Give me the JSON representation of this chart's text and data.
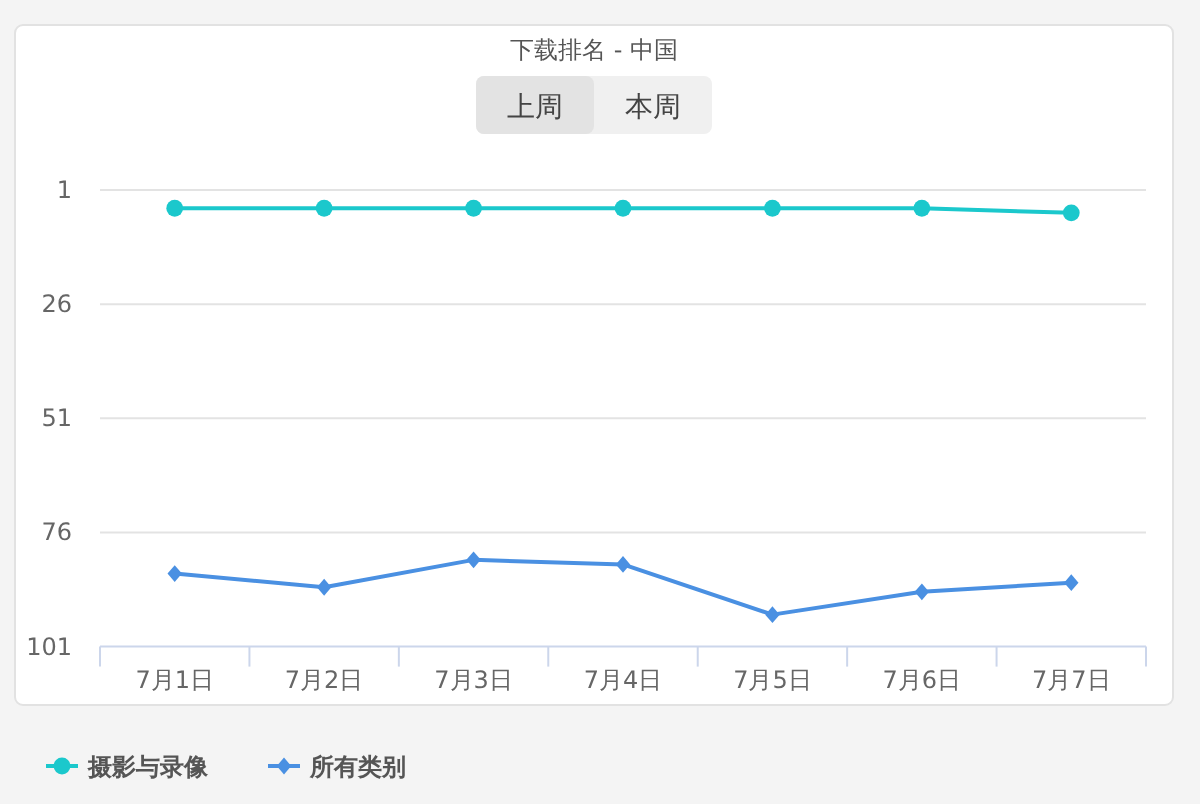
{
  "chart_data": {
    "type": "line",
    "title": "下载排名 - 中国",
    "annotations": [
      "上周",
      "本周"
    ],
    "categories": [
      "7月1日",
      "7月2日",
      "7月3日",
      "7月4日",
      "7月5日",
      "7月6日",
      "7月7日"
    ],
    "series": [
      {
        "name": "摄影与录像",
        "color": "#1bc8cc",
        "marker": "circle",
        "values": [
          5,
          5,
          5,
          5,
          5,
          5,
          6
        ]
      },
      {
        "name": "所有类别",
        "color": "#4a90e2",
        "marker": "diamond",
        "values": [
          85,
          88,
          82,
          83,
          94,
          89,
          87
        ]
      }
    ],
    "ylim": [
      101,
      1
    ],
    "yticks": [
      1,
      26,
      51,
      76,
      101
    ],
    "grid": "y",
    "legend": "bottom left"
  }
}
